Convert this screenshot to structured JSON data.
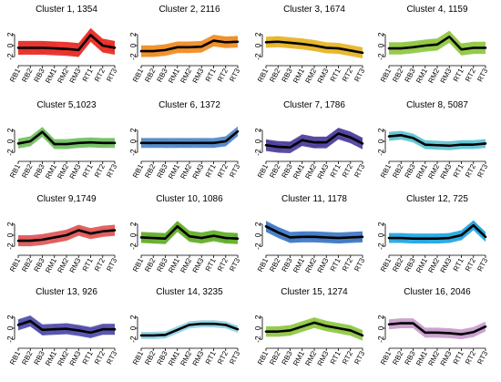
{
  "chart_data": {
    "type": "line",
    "layout": {
      "rows": 4,
      "cols": 4
    },
    "x_tick_labels": [
      "RB1",
      "RB2",
      "RB3",
      "RM1",
      "RM2",
      "RM3",
      "RT1",
      "RT2",
      "RT3"
    ],
    "y_tick_labels": [
      "2",
      "0",
      "-2"
    ],
    "y_tick_values": [
      2,
      0,
      -2
    ],
    "ylim": [
      -2.8,
      2.8
    ],
    "panels": [
      {
        "title": "Cluster 1, 1354",
        "color": "#e8251e",
        "band": 1.25,
        "mean": [
          -0.4,
          -0.4,
          -0.4,
          -0.5,
          -0.6,
          -0.8,
          1.9,
          0.0,
          -0.4
        ]
      },
      {
        "title": "Cluster 2, 2116",
        "color": "#f08a1d",
        "band": 1.05,
        "mean": [
          -1.0,
          -1.0,
          -0.8,
          -0.3,
          -0.3,
          -0.2,
          0.9,
          0.6,
          0.7
        ]
      },
      {
        "title": "Cluster 3, 1674",
        "color": "#e6b321",
        "band": 1.0,
        "mean": [
          0.6,
          0.7,
          0.5,
          0.3,
          0.0,
          -0.4,
          -0.5,
          -0.9,
          -1.3
        ]
      },
      {
        "title": "Cluster 4, 1159",
        "color": "#8dc63f",
        "band": 1.1,
        "mean": [
          -0.5,
          -0.5,
          -0.3,
          0.0,
          0.2,
          1.6,
          -0.7,
          -0.4,
          -0.4
        ]
      },
      {
        "title": "Cluster 5,1023",
        "color": "#6fbf5e",
        "band": 0.9,
        "mean": [
          -0.4,
          0.0,
          1.7,
          -0.5,
          -0.5,
          -0.3,
          -0.2,
          -0.3,
          -0.3
        ]
      },
      {
        "title": "Cluster 6, 1372",
        "color": "#4f86c8",
        "band": 0.9,
        "mean": [
          -0.3,
          -0.3,
          -0.3,
          -0.3,
          -0.3,
          -0.3,
          -0.3,
          0.0,
          1.8
        ]
      },
      {
        "title": "Cluster 7, 1786",
        "color": "#4a3a9a",
        "band": 1.05,
        "mean": [
          -0.7,
          -1.0,
          -1.1,
          0.2,
          -0.2,
          -0.2,
          1.4,
          0.7,
          -0.4
        ]
      },
      {
        "title": "Cluster 8, 5087",
        "color": "#5cc2d2",
        "band": 0.8,
        "mean": [
          0.9,
          1.1,
          0.6,
          -0.6,
          -0.7,
          -0.8,
          -0.6,
          -0.6,
          -0.4
        ]
      },
      {
        "title": "Cluster 9,1749",
        "color": "#e05454",
        "band": 1.0,
        "mean": [
          -1.0,
          -1.0,
          -0.8,
          -0.4,
          0.0,
          0.9,
          0.3,
          0.7,
          0.9
        ]
      },
      {
        "title": "Cluster 10, 1086",
        "color": "#5fac22",
        "band": 1.0,
        "mean": [
          -0.4,
          -0.5,
          -0.6,
          1.6,
          -0.2,
          -0.5,
          -0.1,
          -0.5,
          -0.6
        ]
      },
      {
        "title": "Cluster 11, 1178",
        "color": "#3a75c4",
        "band": 1.0,
        "mean": [
          1.6,
          0.5,
          -0.4,
          -0.3,
          -0.3,
          -0.4,
          -0.5,
          -0.4,
          -0.3
        ]
      },
      {
        "title": "Cluster 12, 725",
        "color": "#1fa4e0",
        "band": 0.9,
        "mean": [
          -0.5,
          -0.5,
          -0.6,
          -0.6,
          -0.6,
          -0.5,
          0.0,
          1.8,
          -0.3
        ]
      },
      {
        "title": "Cluster 13, 926",
        "color": "#4c4aa8",
        "band": 1.0,
        "mean": [
          0.6,
          1.3,
          -0.3,
          -0.2,
          -0.1,
          -0.4,
          -0.8,
          -0.2,
          -0.2
        ]
      },
      {
        "title": "Cluster 14, 3235",
        "color": "#92d3e6",
        "band": 0.65,
        "mean": [
          -1.3,
          -1.3,
          -1.2,
          -0.3,
          0.6,
          0.8,
          0.8,
          0.6,
          -0.2
        ]
      },
      {
        "title": "Cluster 15, 1274",
        "color": "#8dc63f",
        "band": 0.95,
        "mean": [
          -0.6,
          -0.6,
          -0.4,
          0.3,
          1.0,
          0.4,
          0.0,
          -0.4,
          -1.3
        ]
      },
      {
        "title": "Cluster 16, 2046",
        "color": "#c99bcc",
        "band": 0.9,
        "mean": [
          0.7,
          0.9,
          0.9,
          -0.8,
          -0.8,
          -0.9,
          -1.1,
          -0.7,
          0.3
        ]
      }
    ]
  }
}
